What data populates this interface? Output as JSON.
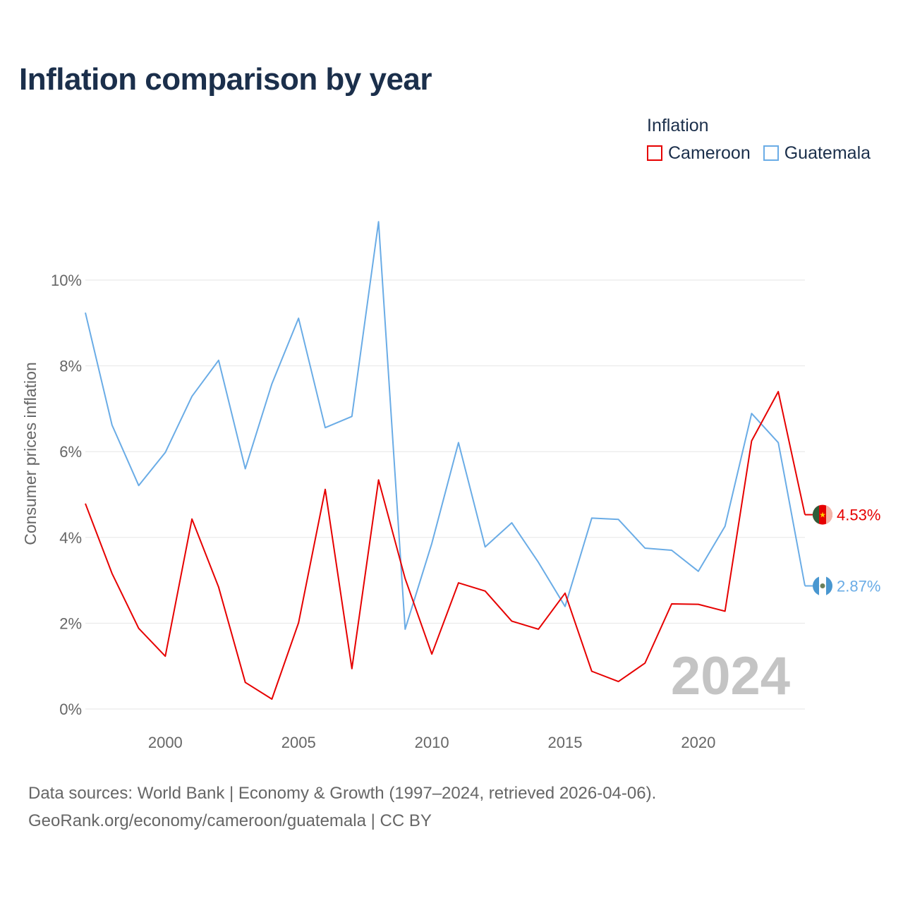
{
  "title": "Inflation comparison by year",
  "legend": {
    "title": "Inflation",
    "items": [
      {
        "label": "Cameroon",
        "color": "#e60000"
      },
      {
        "label": "Guatemala",
        "color": "#6aace6"
      }
    ]
  },
  "footer": {
    "line1": "Data sources: World Bank | Economy & Growth (1997–2024, retrieved 2026-04-06).",
    "line2": "GeoRank.org/economy/cameroon/guatemala | CC BY"
  },
  "chart_data": {
    "type": "line",
    "title": "Inflation comparison by year",
    "xlabel": "",
    "ylabel": "Consumer prices inflation",
    "xlim": [
      1997,
      2024
    ],
    "ylim": [
      0,
      11.5
    ],
    "x_ticks": [
      2000,
      2005,
      2010,
      2015,
      2020
    ],
    "x_tick_labels": [
      "2000",
      "2005",
      "2010",
      "2015",
      "2020"
    ],
    "y_ticks": [
      0,
      2,
      4,
      6,
      8,
      10
    ],
    "y_tick_labels": [
      "0%",
      "2%",
      "4%",
      "6%",
      "8%",
      "10%"
    ],
    "grid": true,
    "legend_position": "top-right",
    "watermark": "2024",
    "x": [
      1997,
      1998,
      1999,
      2000,
      2001,
      2002,
      2003,
      2004,
      2005,
      2006,
      2007,
      2008,
      2009,
      2010,
      2011,
      2012,
      2013,
      2014,
      2015,
      2016,
      2017,
      2018,
      2019,
      2020,
      2021,
      2022,
      2023,
      2024
    ],
    "series": [
      {
        "name": "Cameroon",
        "color": "#e60000",
        "end_label": "4.53%",
        "values": [
          4.79,
          3.16,
          1.88,
          1.23,
          4.43,
          2.84,
          0.62,
          0.23,
          2.01,
          5.12,
          0.94,
          5.34,
          3.04,
          1.28,
          2.94,
          2.75,
          2.05,
          1.86,
          2.7,
          0.88,
          0.64,
          1.07,
          2.45,
          2.44,
          2.28,
          6.25,
          7.4,
          4.53
        ]
      },
      {
        "name": "Guatemala",
        "color": "#6aace6",
        "end_label": "2.87%",
        "values": [
          9.24,
          6.62,
          5.21,
          5.98,
          7.29,
          8.13,
          5.6,
          7.58,
          9.11,
          6.56,
          6.82,
          11.36,
          1.86,
          3.86,
          6.21,
          3.78,
          4.34,
          3.42,
          2.39,
          4.45,
          4.42,
          3.75,
          3.7,
          3.21,
          4.26,
          6.89,
          6.21,
          2.87
        ]
      }
    ]
  }
}
